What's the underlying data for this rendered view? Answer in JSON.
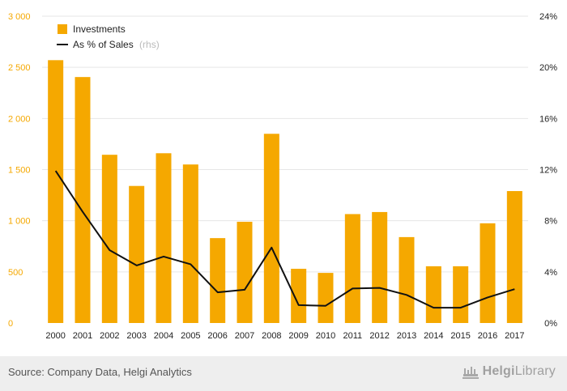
{
  "chart_data": {
    "type": "bar",
    "categories": [
      "2000",
      "2001",
      "2002",
      "2003",
      "2004",
      "2005",
      "2006",
      "2007",
      "2008",
      "2009",
      "2010",
      "2011",
      "2012",
      "2013",
      "2014",
      "2015",
      "2016",
      "2017"
    ],
    "series": [
      {
        "name": "Investments",
        "type": "bar",
        "axis": "left",
        "color": "#f5a800",
        "values": [
          2570,
          2405,
          1645,
          1340,
          1660,
          1550,
          830,
          990,
          1850,
          530,
          490,
          1065,
          1085,
          840,
          555,
          555,
          975,
          1290
        ]
      },
      {
        "name": "As % of Sales",
        "type": "line",
        "axis": "right",
        "color": "#111111",
        "values": [
          11.9,
          8.7,
          5.7,
          4.5,
          5.2,
          4.6,
          2.4,
          2.6,
          5.9,
          1.4,
          1.35,
          2.7,
          2.75,
          2.2,
          1.2,
          1.2,
          2.0,
          2.65
        ]
      }
    ],
    "left_axis": {
      "min": 0,
      "max": 3000,
      "ticks": [
        0,
        500,
        1000,
        1500,
        2000,
        2500,
        3000
      ],
      "tick_labels": [
        "0",
        "500",
        "1 000",
        "1 500",
        "2 000",
        "2 500",
        "3 000"
      ]
    },
    "right_axis": {
      "min": 0,
      "max": 24,
      "ticks": [
        0,
        4,
        8,
        12,
        16,
        20,
        24
      ],
      "tick_labels": [
        "0%",
        "4%",
        "8%",
        "12%",
        "16%",
        "20%",
        "24%"
      ]
    },
    "legend": {
      "position": "top-left",
      "rhs_suffix": "(rhs)"
    },
    "grid": true
  },
  "footer": {
    "source": "Source: Company Data, Helgi Analytics",
    "logo_bold": "Helgi",
    "logo_rest": "Library"
  },
  "colors": {
    "bar": "#f5a800",
    "line": "#111111",
    "axis_label_left": "#f5a800",
    "grid": "#e6e6e6",
    "footer_bg": "#eeeeee"
  }
}
